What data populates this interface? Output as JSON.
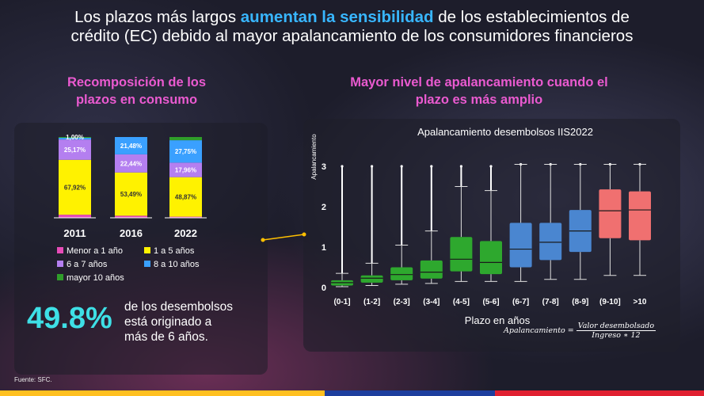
{
  "headline": {
    "line1_pre": "Los plazos más largos ",
    "line1_hl": "aumentan la sensibilidad",
    "line1_post": " de los establecimientos de",
    "line2": "crédito (EC) debido al mayor apalancamiento de los consumidores financieros"
  },
  "left": {
    "subtitle_1": "Recomposición de los",
    "subtitle_2": "plazos en consumo"
  },
  "right": {
    "subtitle_1": "Mayor nivel de apalancamiento cuando el",
    "subtitle_2": "plazo es más amplio"
  },
  "stat": {
    "value": "49.8%",
    "line1": "de los desembolsos",
    "line2": "está originado a",
    "line3": "más de 6 años."
  },
  "formula": {
    "lhs": "Apalancamiento =",
    "numerator": "Valor desembolsado",
    "denominator": "Ingreso ∗ 12"
  },
  "source": "Fuente: SFC.",
  "colors": {
    "menor1": "#e64bb7",
    "a1_5": "#fff200",
    "a6_7": "#b47ff0",
    "a8_10": "#3aa0ff",
    "mayor10": "#2f9d2a",
    "box_green": "#2ea82e",
    "box_blue": "#4a86d0",
    "box_red": "#f07070",
    "bar_yellow": "#ffc020",
    "bar_blue": "#1d3e9e",
    "bar_red": "#e02030"
  },
  "chart_data": [
    {
      "type": "bar",
      "stacked": true,
      "categories": [
        "2011",
        "2016",
        "2022"
      ],
      "series": [
        {
          "name": "Menor a 1 año",
          "color": "#e64bb7",
          "values": [
            3.84,
            2.59,
            1.43
          ]
        },
        {
          "name": "1 a 5 años",
          "color": "#fff200",
          "values": [
            67.92,
            53.49,
            48.87
          ]
        },
        {
          "name": "6 a 7 años",
          "color": "#b47ff0",
          "values": [
            25.17,
            22.44,
            17.96
          ]
        },
        {
          "name": "8 a 10 años",
          "color": "#3aa0ff",
          "values": [
            2.07,
            21.48,
            27.75
          ]
        },
        {
          "name": "mayor 10 años",
          "color": "#2f9d2a",
          "values": [
            1.0,
            0,
            4.0
          ]
        }
      ],
      "labels": [
        [
          null,
          "67,92%",
          "25,17%",
          null,
          "1,00%"
        ],
        [
          null,
          "53,49%",
          "22,44%",
          "21,48%",
          null
        ],
        [
          null,
          "48,87%",
          "17,96%",
          "27,75%",
          null
        ]
      ],
      "legend": "bottom",
      "ylim": [
        0,
        100
      ]
    },
    {
      "type": "box",
      "title": "Apalancamiento desembolsos IIS2022",
      "xlabel": "Plazo en años",
      "ylabel": "Apalancamiento",
      "ylim": [
        0,
        3.3
      ],
      "yticks": [
        0,
        1,
        2,
        3
      ],
      "categories": [
        "(0-1]",
        "(1-2]",
        "(2-3]",
        "(3-4]",
        "(4-5]",
        "(5-6]",
        "(6-7]",
        "(7-8]",
        "(8-9]",
        "(9-10]",
        ">10"
      ],
      "colors": [
        "green",
        "green",
        "green",
        "green",
        "green",
        "green",
        "blue",
        "blue",
        "blue",
        "red",
        "red"
      ],
      "boxes": [
        {
          "whisker_low": 0.02,
          "q1": 0.05,
          "median": 0.12,
          "q3": 0.18,
          "whisker_high": 0.35,
          "outlier_max": 3.0
        },
        {
          "whisker_low": 0.05,
          "q1": 0.12,
          "median": 0.23,
          "q3": 0.3,
          "whisker_high": 0.6,
          "outlier_max": 3.0
        },
        {
          "whisker_low": 0.08,
          "q1": 0.18,
          "median": 0.32,
          "q3": 0.5,
          "whisker_high": 1.05,
          "outlier_max": 3.0
        },
        {
          "whisker_low": 0.1,
          "q1": 0.22,
          "median": 0.38,
          "q3": 0.67,
          "whisker_high": 1.4,
          "outlier_max": 3.0
        },
        {
          "whisker_low": 0.15,
          "q1": 0.4,
          "median": 0.7,
          "q3": 1.25,
          "whisker_high": 2.5,
          "outlier_max": 3.0
        },
        {
          "whisker_low": 0.15,
          "q1": 0.33,
          "median": 0.62,
          "q3": 1.15,
          "whisker_high": 2.4,
          "outlier_max": 3.0
        },
        {
          "whisker_low": 0.15,
          "q1": 0.5,
          "median": 0.95,
          "q3": 1.6,
          "whisker_high": 3.05,
          "outlier_max": 3.05
        },
        {
          "whisker_low": 0.2,
          "q1": 0.68,
          "median": 1.12,
          "q3": 1.6,
          "whisker_high": 3.05,
          "outlier_max": 3.05
        },
        {
          "whisker_low": 0.2,
          "q1": 0.88,
          "median": 1.4,
          "q3": 1.92,
          "whisker_high": 3.05,
          "outlier_max": 3.05
        },
        {
          "whisker_low": 0.3,
          "q1": 1.22,
          "median": 1.9,
          "q3": 2.43,
          "whisker_high": 3.05,
          "outlier_max": 3.05
        },
        {
          "whisker_low": 0.3,
          "q1": 1.17,
          "median": 1.92,
          "q3": 2.38,
          "whisker_high": 3.05,
          "outlier_max": 3.05
        }
      ]
    }
  ]
}
